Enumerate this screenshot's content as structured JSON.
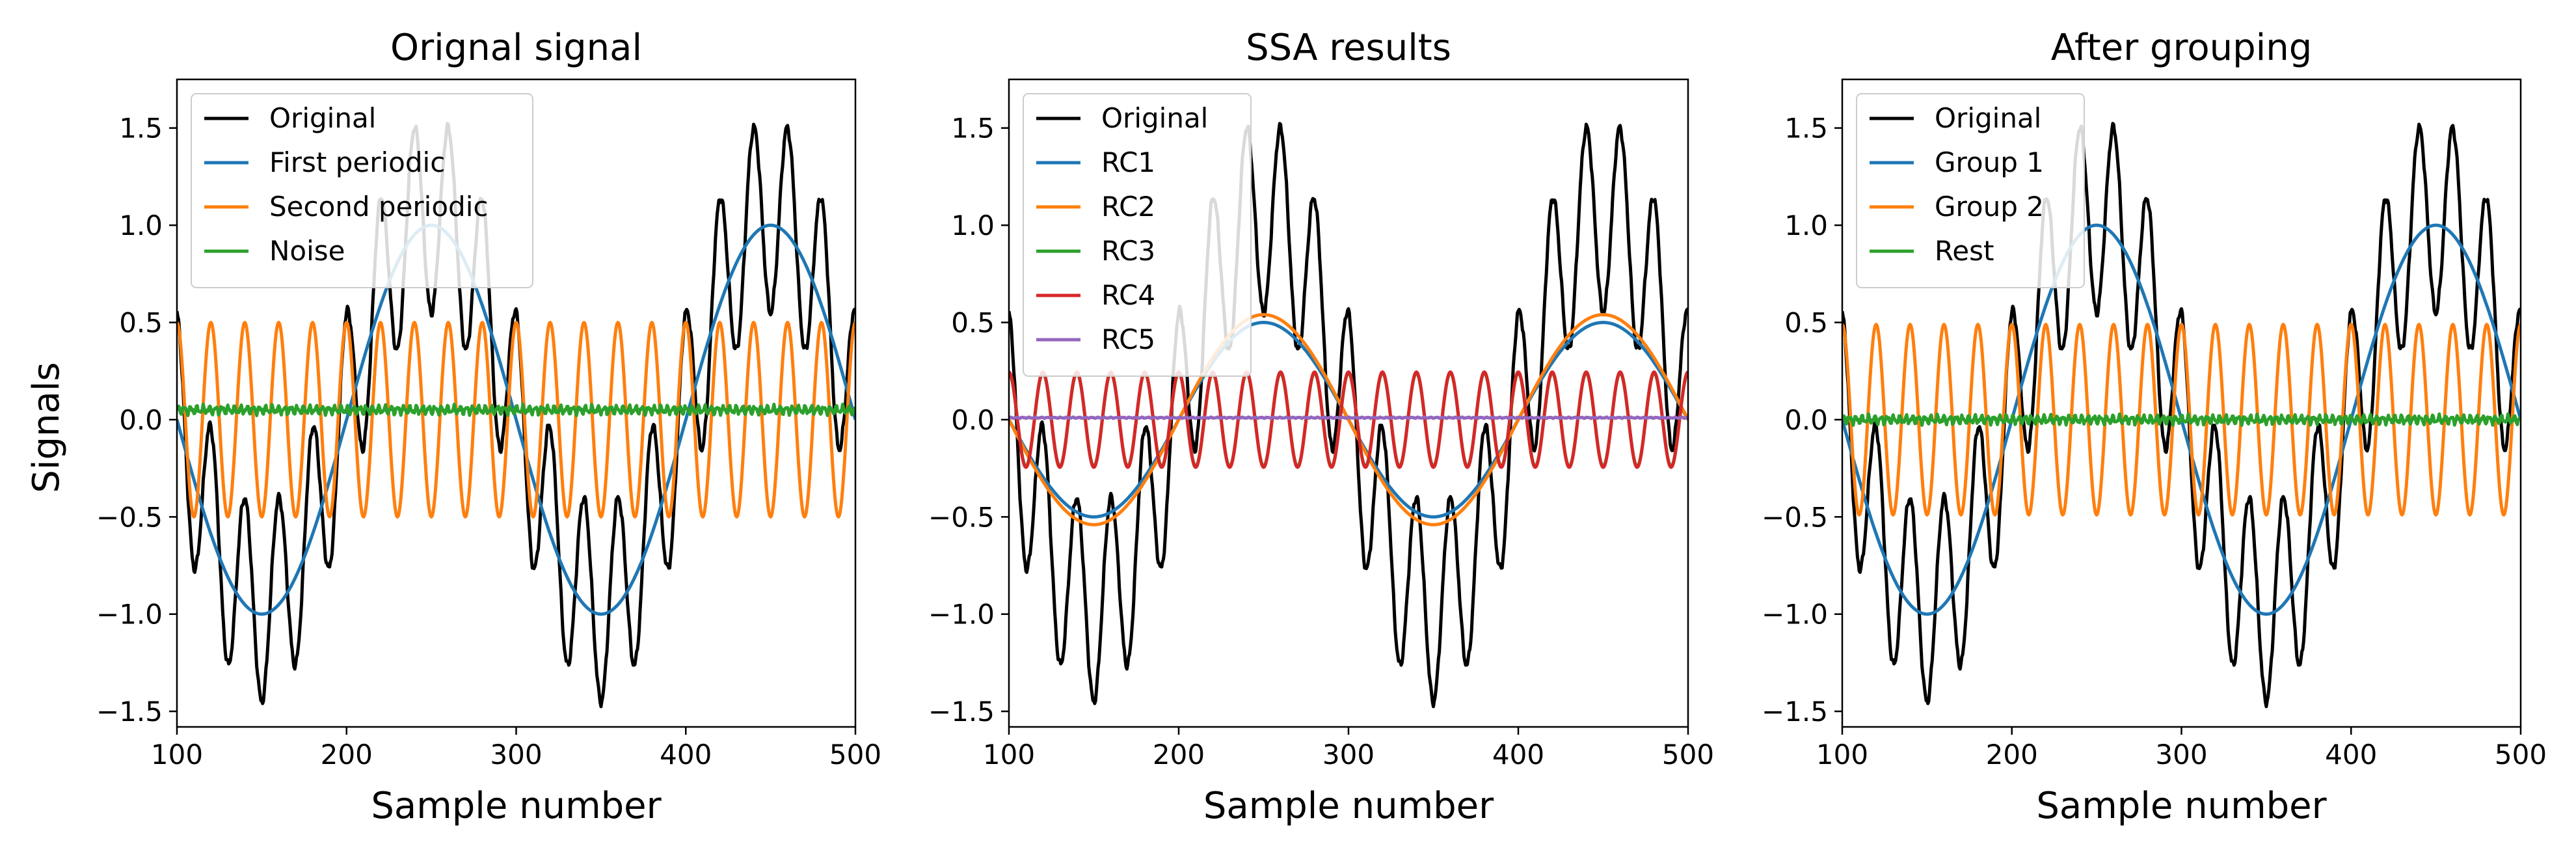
{
  "figure": {
    "ylabel": "Signals"
  },
  "chart_data": [
    {
      "type": "line",
      "title": "Orignal signal",
      "xlabel": "Sample number",
      "ylabel": "Signals",
      "xlim": [
        100,
        500
      ],
      "ylim": [
        -1.58,
        1.75
      ],
      "xticks": [
        100,
        200,
        300,
        400,
        500
      ],
      "yticks": [
        -1.5,
        -1.0,
        -0.5,
        0.0,
        0.5,
        1.0,
        1.5
      ],
      "xtick_labels": [
        "100",
        "200",
        "300",
        "400",
        "500"
      ],
      "ytick_labels": [
        "−1.5",
        "−1.0",
        "−0.5",
        "0.0",
        "0.5",
        "1.0",
        "1.5"
      ],
      "grid": false,
      "legend_position": "top-left",
      "series": [
        {
          "name": "Original",
          "color": "#000000",
          "formula": {
            "p1_amp": 1.0,
            "p1_period": 200,
            "p2_amp": 0.5,
            "p2_period": 20,
            "noise_offset": 0.05,
            "noise_amp": 0.03
          }
        },
        {
          "name": "First periodic",
          "color": "#1f77b4",
          "formula": {
            "p1_amp": 1.0,
            "p1_period": 200
          }
        },
        {
          "name": "Second periodic",
          "color": "#ff7f0e",
          "formula": {
            "p2_amp": 0.5,
            "p2_period": 20
          }
        },
        {
          "name": "Noise",
          "color": "#2ca02c",
          "formula": {
            "noise_offset": 0.05,
            "noise_amp": 0.03
          }
        }
      ]
    },
    {
      "type": "line",
      "title": "SSA results",
      "xlabel": "Sample number",
      "xlim": [
        100,
        500
      ],
      "ylim": [
        -1.58,
        1.75
      ],
      "xticks": [
        100,
        200,
        300,
        400,
        500
      ],
      "yticks": [
        -1.5,
        -1.0,
        -0.5,
        0.0,
        0.5,
        1.0,
        1.5
      ],
      "xtick_labels": [
        "100",
        "200",
        "300",
        "400",
        "500"
      ],
      "ytick_labels": [
        "−1.5",
        "−1.0",
        "−0.5",
        "0.0",
        "0.5",
        "1.0",
        "1.5"
      ],
      "grid": false,
      "legend_position": "top-left",
      "series": [
        {
          "name": "Original",
          "color": "#000000",
          "formula": {
            "p1_amp": 1.0,
            "p1_period": 200,
            "p2_amp": 0.5,
            "p2_period": 20,
            "noise_offset": 0.05,
            "noise_amp": 0.03
          }
        },
        {
          "name": "RC1",
          "color": "#1f77b4",
          "formula": {
            "p1_amp": 0.5,
            "p1_period": 200
          }
        },
        {
          "name": "RC2",
          "color": "#ff7f0e",
          "formula": {
            "p1_amp": 0.54,
            "p1_period": 200
          }
        },
        {
          "name": "RC3",
          "color": "#2ca02c",
          "formula": {
            "p2_amp": 0.24,
            "p2_period": 20
          }
        },
        {
          "name": "RC4",
          "color": "#d62728",
          "formula": {
            "p2_amp": 0.245,
            "p2_period": 20
          }
        },
        {
          "name": "RC5",
          "color": "#9467bd",
          "formula": {
            "noise_offset": 0.01,
            "noise_amp": 0.004
          }
        }
      ]
    },
    {
      "type": "line",
      "title": "After grouping",
      "xlabel": "Sample number",
      "xlim": [
        100,
        500
      ],
      "ylim": [
        -1.58,
        1.75
      ],
      "xticks": [
        100,
        200,
        300,
        400,
        500
      ],
      "yticks": [
        -1.5,
        -1.0,
        -0.5,
        0.0,
        0.5,
        1.0,
        1.5
      ],
      "xtick_labels": [
        "100",
        "200",
        "300",
        "400",
        "500"
      ],
      "ytick_labels": [
        "−1.5",
        "−1.0",
        "−0.5",
        "0.0",
        "0.5",
        "1.0",
        "1.5"
      ],
      "grid": false,
      "legend_position": "top-left",
      "series": [
        {
          "name": "Original",
          "color": "#000000",
          "formula": {
            "p1_amp": 1.0,
            "p1_period": 200,
            "p2_amp": 0.5,
            "p2_period": 20,
            "noise_offset": 0.05,
            "noise_amp": 0.03
          }
        },
        {
          "name": "Group 1",
          "color": "#1f77b4",
          "formula": {
            "p1_amp": 1.0,
            "p1_period": 200
          }
        },
        {
          "name": "Group 2",
          "color": "#ff7f0e",
          "formula": {
            "p2_amp": 0.49,
            "p2_period": 20
          }
        },
        {
          "name": "Rest",
          "color": "#2ca02c",
          "formula": {
            "noise_offset": 0.0,
            "noise_amp": 0.03
          }
        }
      ]
    }
  ]
}
